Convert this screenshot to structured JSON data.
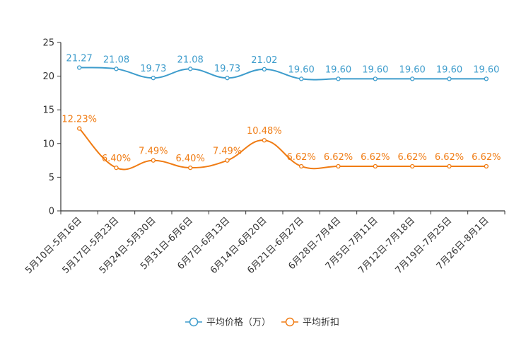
{
  "chart_data": {
    "type": "line",
    "title": "",
    "xlabel": "",
    "ylabel": "",
    "ylim": [
      0,
      25
    ],
    "yticks": [
      0,
      5,
      10,
      15,
      20,
      25
    ],
    "grid": false,
    "legend_position": "bottom-center",
    "categories": [
      "5月10日-5月16日",
      "5月17日-5月23日",
      "5月24日-5月30日",
      "5月31日-6月6日",
      "6月7日-6月13日",
      "6月14日-6月20日",
      "6月21日-6月27日",
      "6月28日-7月4日",
      "7月5日-7月11日",
      "7月12日-7月18日",
      "7月19日-7月25日",
      "7月26日-8月1日"
    ],
    "series": [
      {
        "name": "平均价格（万）",
        "color": "#3d9ccc",
        "values": [
          21.27,
          21.08,
          19.73,
          21.08,
          19.73,
          21.02,
          19.6,
          19.6,
          19.6,
          19.6,
          19.6,
          19.6
        ],
        "labels": [
          "21.27",
          "21.08",
          "19.73",
          "21.08",
          "19.73",
          "21.02",
          "19.60",
          "19.60",
          "19.60",
          "19.60",
          "19.60",
          "19.60"
        ]
      },
      {
        "name": "平均折扣",
        "color": "#f07c14",
        "values": [
          12.23,
          6.4,
          7.49,
          6.4,
          7.49,
          10.48,
          6.62,
          6.62,
          6.62,
          6.62,
          6.62,
          6.62
        ],
        "labels": [
          "12.23%",
          "6.40%",
          "7.49%",
          "6.40%",
          "7.49%",
          "10.48%",
          "6.62%",
          "6.62%",
          "6.62%",
          "6.62%",
          "6.62%",
          "6.62%"
        ]
      }
    ]
  }
}
